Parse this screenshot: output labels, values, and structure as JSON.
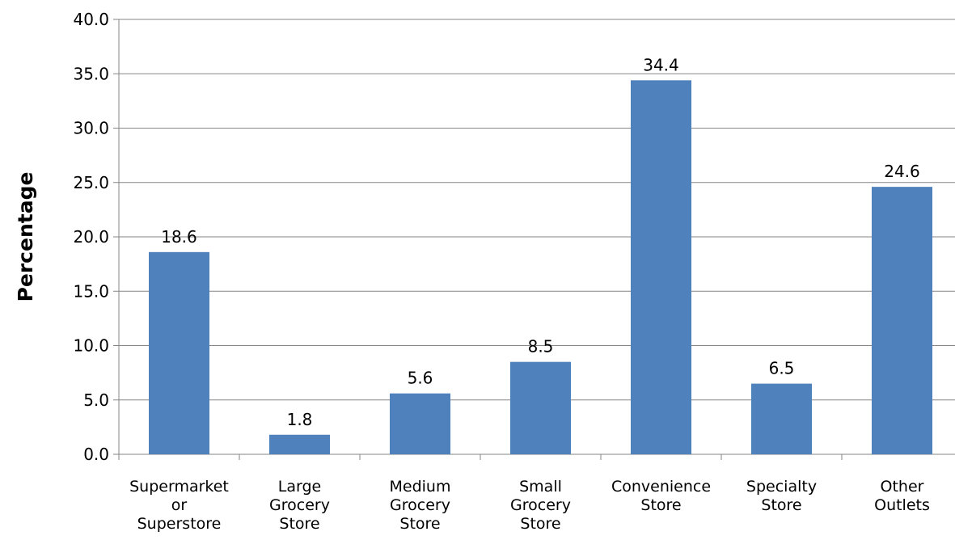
{
  "chart_data": {
    "type": "bar",
    "title": "",
    "xlabel": "",
    "ylabel": "Percentage",
    "categories": [
      [
        "Supermarket",
        "or",
        "Superstore"
      ],
      [
        "Large",
        "Grocery",
        "Store"
      ],
      [
        "Medium",
        "Grocery",
        "Store"
      ],
      [
        "Small",
        "Grocery",
        "Store"
      ],
      [
        "Convenience",
        "Store"
      ],
      [
        "Specialty",
        "Store"
      ],
      [
        "Other",
        "Outlets"
      ]
    ],
    "values": [
      18.6,
      1.8,
      5.6,
      8.5,
      34.4,
      6.5,
      24.6
    ],
    "value_labels": [
      "18.6",
      "1.8",
      "5.6",
      "8.5",
      "34.4",
      "6.5",
      "24.6"
    ],
    "ylim": [
      0,
      40
    ],
    "yticks": [
      "0.0",
      "5.0",
      "10.0",
      "15.0",
      "20.0",
      "25.0",
      "30.0",
      "35.0",
      "40.0"
    ],
    "ytick_values": [
      0,
      5,
      10,
      15,
      20,
      25,
      30,
      35,
      40
    ],
    "grid": true,
    "legend": "none",
    "colors": {
      "bar": "#4f81bd",
      "grid": "#868686",
      "axis": "#868686"
    }
  }
}
